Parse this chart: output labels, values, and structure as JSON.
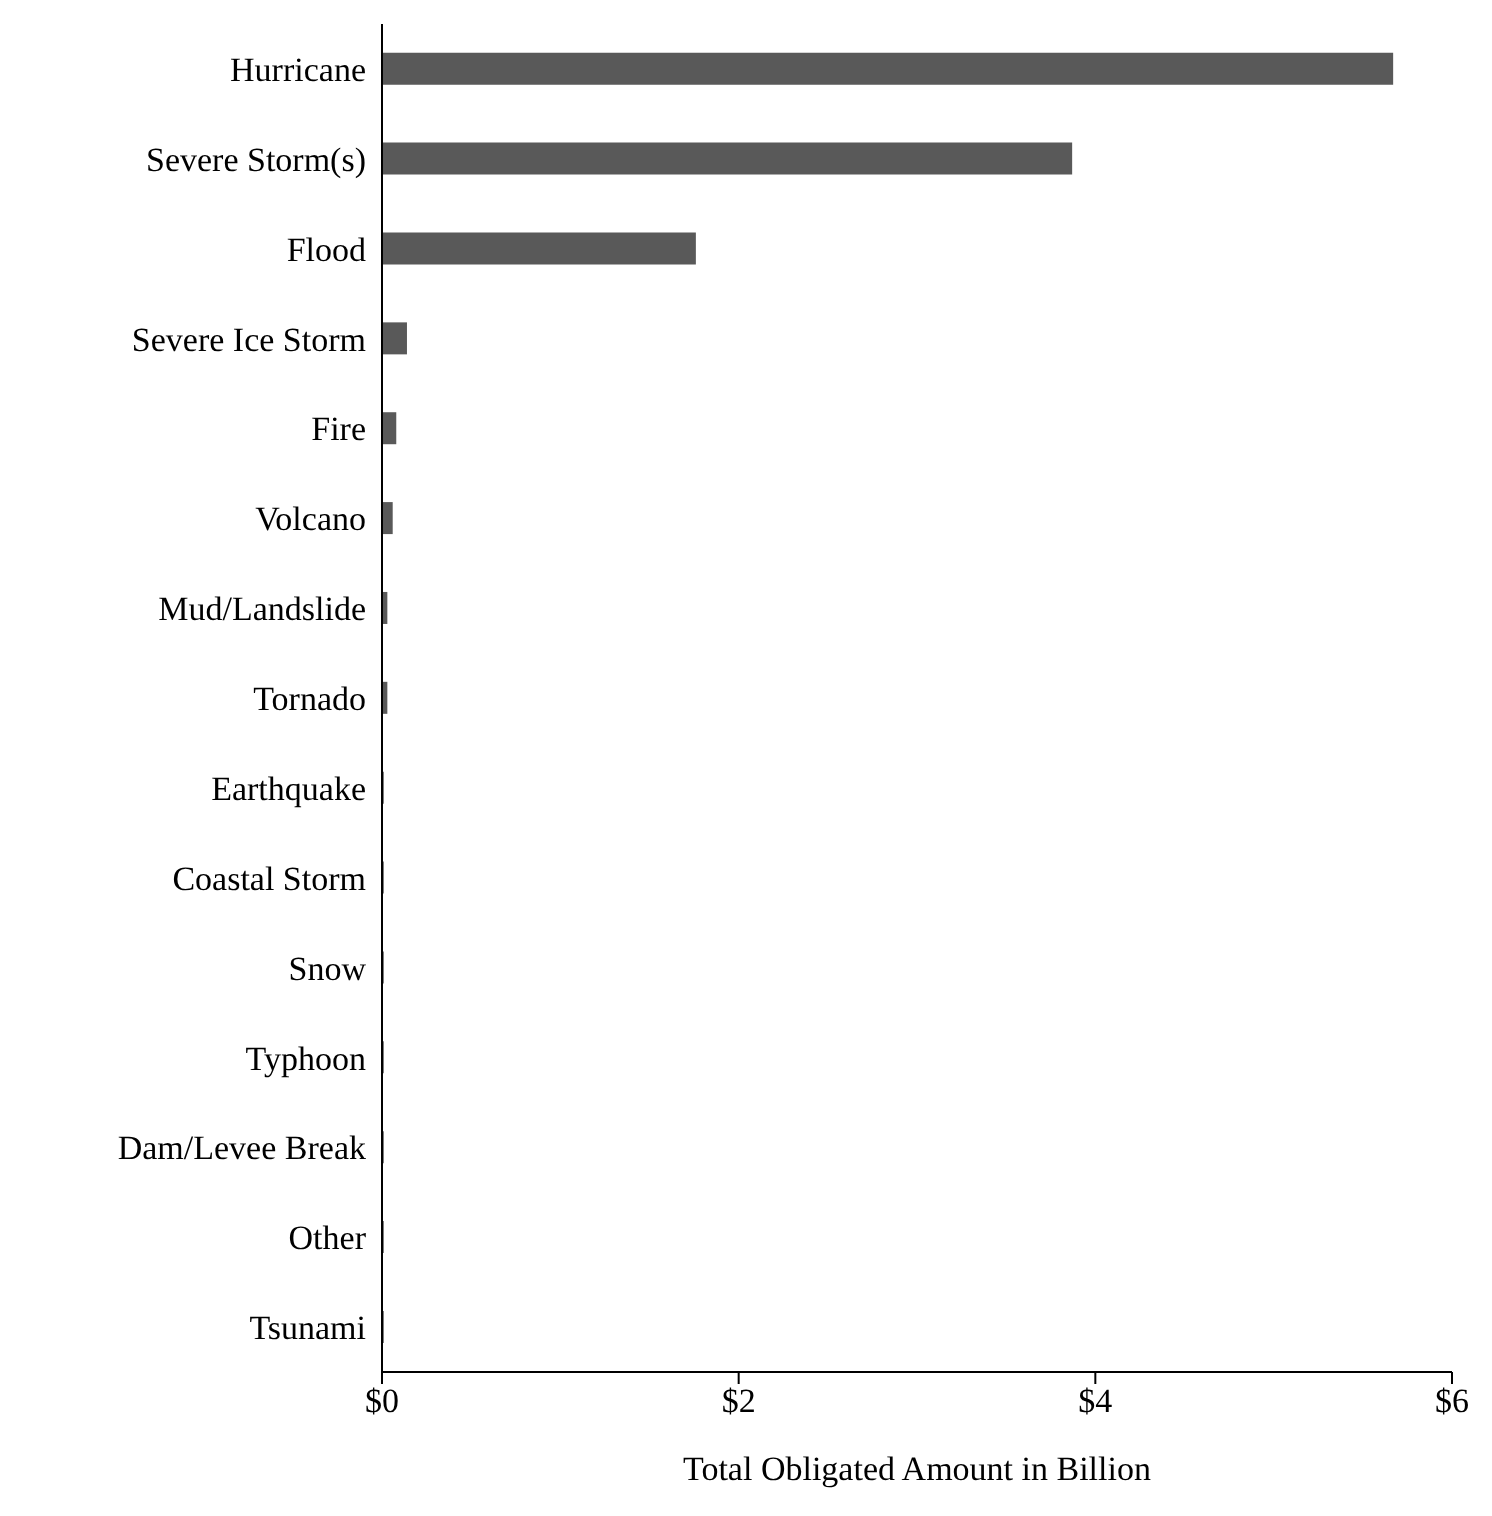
{
  "chart_data": {
    "type": "bar",
    "orientation": "horizontal",
    "xlabel": "Total Obligated Amount in Billion",
    "categories": [
      "Hurricane",
      "Severe Storm(s)",
      "Flood",
      "Severe Ice Storm",
      "Fire",
      "Volcano",
      "Mud/Landslide",
      "Tornado",
      "Earthquake",
      "Coastal Storm",
      "Snow",
      "Typhoon",
      "Dam/Levee Break",
      "Other",
      "Tsunami"
    ],
    "values": [
      5.67,
      3.87,
      1.76,
      0.14,
      0.08,
      0.06,
      0.03,
      0.03,
      0.01,
      0.01,
      0.01,
      0.01,
      0.01,
      0.01,
      0.01
    ],
    "color": "#595959",
    "xlim": [
      0,
      6
    ],
    "xticks": [
      {
        "value": 0,
        "label": "$0"
      },
      {
        "value": 2,
        "label": "$2"
      },
      {
        "value": 4,
        "label": "$4"
      },
      {
        "value": 6,
        "label": "$6"
      }
    ],
    "grid": false,
    "legend": false
  }
}
